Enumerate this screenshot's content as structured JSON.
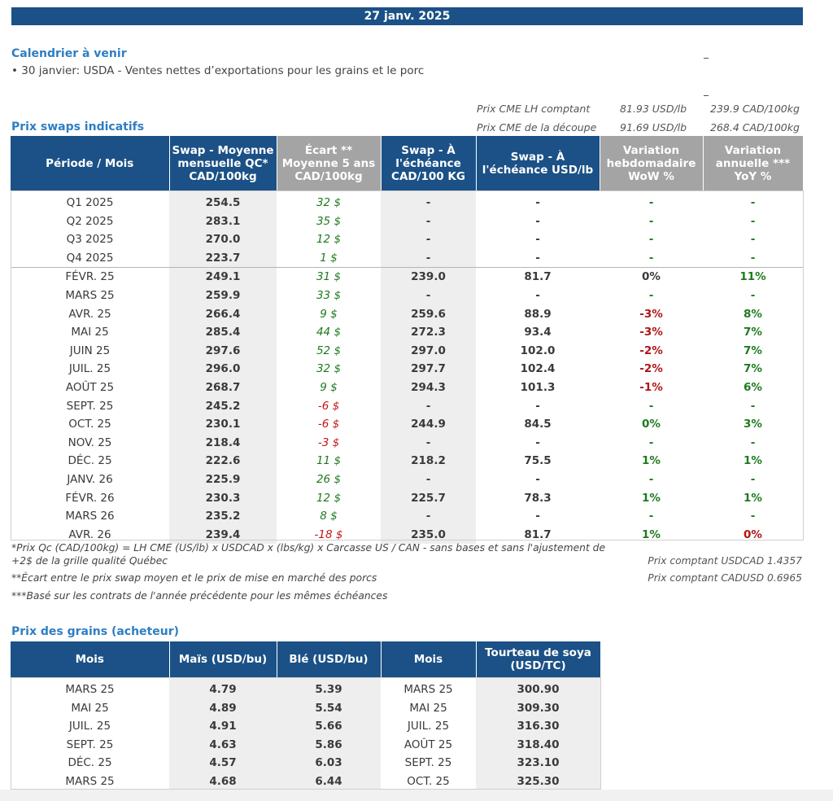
{
  "date": "27 janv. 2025",
  "calendar": {
    "title": "Calendrier à venir",
    "items": [
      "• 30 janvier: USDA - Ventes nettes d’exportations pour les grains et le porc"
    ]
  },
  "cme": [
    {
      "label": "Prix CME LH comptant",
      "usd": "81.93 USD/lb",
      "cad": "239.9 CAD/100kg"
    },
    {
      "label": "Prix CME de la découpe",
      "usd": "91.69 USD/lb",
      "cad": "268.4 CAD/100kg"
    }
  ],
  "swaps": {
    "title": "Prix swaps indicatifs",
    "headers": [
      "Période / Mois",
      "Swap - Moyenne mensuelle QC* CAD/100kg",
      "Écart ** Moyenne 5 ans CAD/100kg",
      "Swap - À l'échéance CAD/100 KG",
      "Swap - À l'échéance USD/lb",
      "Variation hebdomadaire WoW %",
      "Variation annuelle *** YoY %"
    ],
    "rows": [
      [
        "Q1 2025",
        "254.5",
        "32 $",
        "-",
        "-",
        "-",
        "-"
      ],
      [
        "Q2 2025",
        "283.1",
        "35 $",
        "-",
        "-",
        "-",
        "-"
      ],
      [
        "Q3 2025",
        "270.0",
        "12 $",
        "-",
        "-",
        "-",
        "-"
      ],
      [
        "Q4 2025",
        "223.7",
        "1 $",
        "-",
        "-",
        "-",
        "-"
      ],
      [
        "FÉVR. 25",
        "249.1",
        "31 $",
        "239.0",
        "81.7",
        "0%",
        "11%"
      ],
      [
        "MARS 25",
        "259.9",
        "33 $",
        "-",
        "-",
        "-",
        "-"
      ],
      [
        "AVR. 25",
        "266.4",
        "9 $",
        "259.6",
        "88.9",
        "-3%",
        "8%"
      ],
      [
        "MAI 25",
        "285.4",
        "44 $",
        "272.3",
        "93.4",
        "-3%",
        "7%"
      ],
      [
        "JUIN 25",
        "297.6",
        "52 $",
        "297.0",
        "102.0",
        "-2%",
        "7%"
      ],
      [
        "JUIL. 25",
        "296.0",
        "32 $",
        "297.7",
        "102.4",
        "-2%",
        "7%"
      ],
      [
        "AOÛT 25",
        "268.7",
        "9 $",
        "294.3",
        "101.3",
        "-1%",
        "6%"
      ],
      [
        "SEPT. 25",
        "245.2",
        "-6 $",
        "-",
        "-",
        "-",
        "-"
      ],
      [
        "OCT. 25",
        "230.1",
        "-6 $",
        "244.9",
        "84.5",
        "0%",
        "3%"
      ],
      [
        "NOV. 25",
        "218.4",
        "-3 $",
        "-",
        "-",
        "-",
        "-"
      ],
      [
        "DÉC. 25",
        "222.6",
        "11 $",
        "218.2",
        "75.5",
        "1%",
        "1%"
      ],
      [
        "JANV. 26",
        "225.9",
        "26 $",
        "-",
        "-",
        "-",
        "-"
      ],
      [
        "FÉVR. 26",
        "230.3",
        "12 $",
        "225.7",
        "78.3",
        "1%",
        "1%"
      ],
      [
        "MARS 26",
        "235.2",
        "8 $",
        "-",
        "-",
        "-",
        "-"
      ],
      [
        "AVR. 26",
        "239.4",
        "-18 $",
        "235.0",
        "81.7",
        "1%",
        "0%"
      ]
    ]
  },
  "notes": {
    "n1a": "*Prix Qc (CAD/100kg) = LH CME (US/lb) x USDCAD x (lbs/kg) x Carcasse US / CAN - sans bases et sans l'ajustement de",
    "n1b": "+2$ de la grille qualité Québec",
    "n2": "**Écart entre le prix swap moyen et le prix de mise en marché des porcs",
    "n3": "***Basé sur les contrats de l'année précédente pour les mêmes échéances",
    "usdcad": "Prix comptant USDCAD 1.4357",
    "cadusd": "Prix comptant CADUSD 0.6965"
  },
  "grains": {
    "title": "Prix des grains (acheteur)",
    "headers": [
      "Mois",
      "Maïs (USD/bu)",
      "Blé (USD/bu)",
      "Mois",
      "Tourteau de soya (USD/TC)"
    ],
    "rows": [
      [
        "MARS 25",
        "4.79",
        "5.39",
        "MARS 25",
        "300.90"
      ],
      [
        "MAI 25",
        "4.89",
        "5.54",
        "MAI 25",
        "309.30"
      ],
      [
        "JUIL. 25",
        "4.91",
        "5.66",
        "JUIL. 25",
        "316.30"
      ],
      [
        "SEPT. 25",
        "4.63",
        "5.86",
        "AOÛT 25",
        "318.40"
      ],
      [
        "DÉC. 25",
        "4.57",
        "6.03",
        "SEPT. 25",
        "323.10"
      ],
      [
        "MARS 25",
        "4.68",
        "6.44",
        "OCT. 25",
        "325.30"
      ]
    ]
  }
}
